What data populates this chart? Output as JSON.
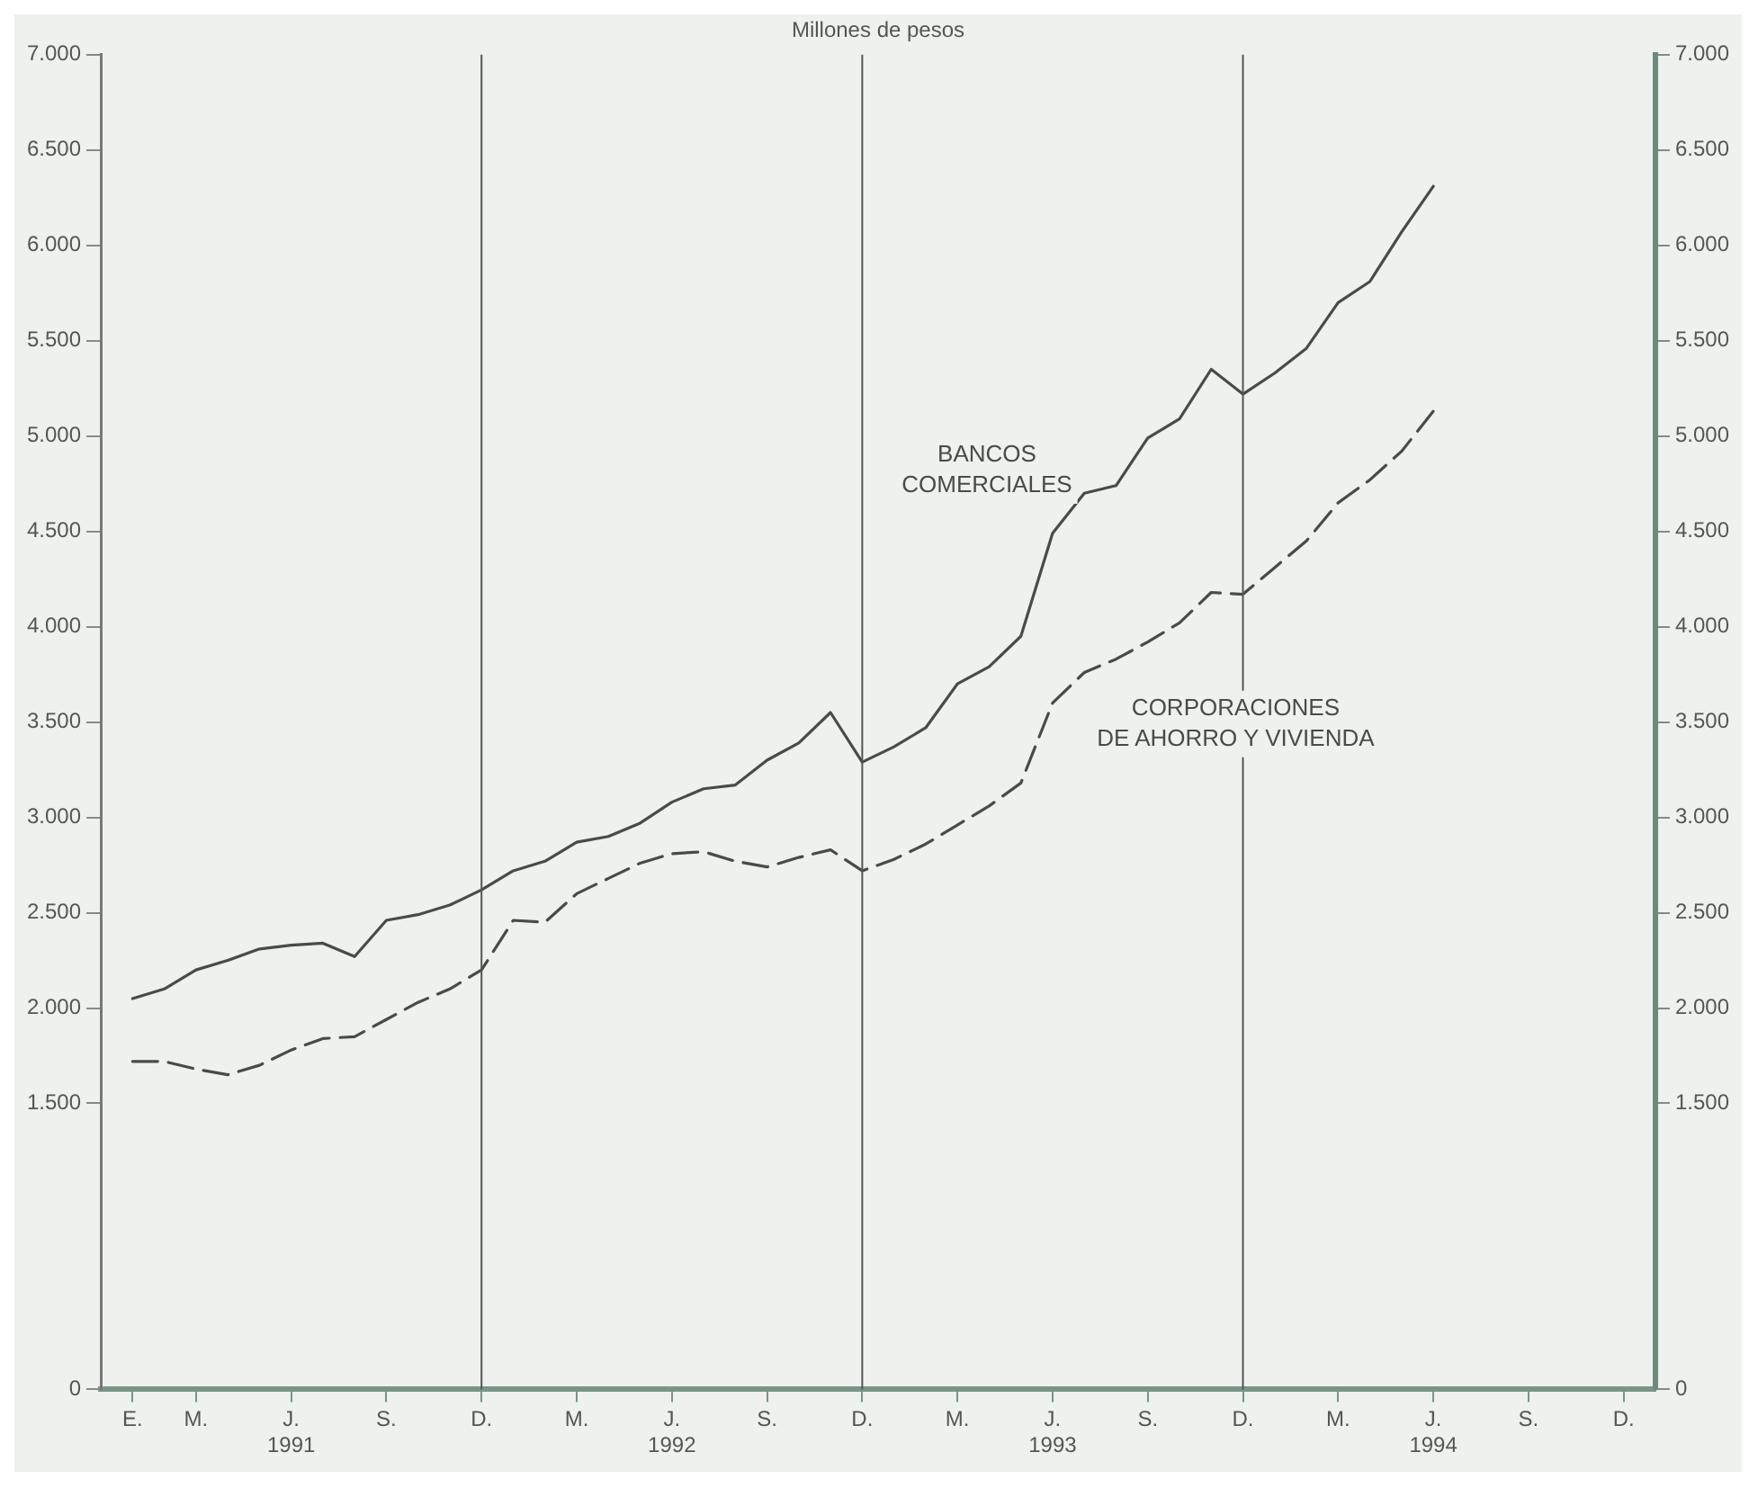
{
  "chart_data": {
    "type": "line",
    "title": "Millones de pesos",
    "x": [
      "1991-01",
      "1991-02",
      "1991-03",
      "1991-04",
      "1991-05",
      "1991-06",
      "1991-07",
      "1991-08",
      "1991-09",
      "1991-10",
      "1991-11",
      "1991-12",
      "1992-01",
      "1992-02",
      "1992-03",
      "1992-04",
      "1992-05",
      "1992-06",
      "1992-07",
      "1992-08",
      "1992-09",
      "1992-10",
      "1992-11",
      "1992-12",
      "1993-01",
      "1993-02",
      "1993-03",
      "1993-04",
      "1993-05",
      "1993-06",
      "1993-07",
      "1993-08",
      "1993-09",
      "1993-10",
      "1993-11",
      "1993-12",
      "1994-01",
      "1994-02",
      "1994-03",
      "1994-04",
      "1994-05",
      "1994-06"
    ],
    "series": [
      {
        "name": "BANCOS\nCOMERCIALES",
        "color": "#4a4a4a",
        "line_style": "solid",
        "values": [
          2050,
          2100,
          2200,
          2250,
          2310,
          2330,
          2340,
          2270,
          2460,
          2490,
          2540,
          2620,
          2720,
          2770,
          2870,
          2900,
          2970,
          3080,
          3150,
          3170,
          3300,
          3390,
          3550,
          3290,
          3370,
          3470,
          3700,
          3790,
          3950,
          4490,
          4700,
          4740,
          4990,
          5090,
          5350,
          5220,
          5330,
          5460,
          5700,
          5810,
          6070,
          6310
        ]
      },
      {
        "name": "CORPORACIONES\nDE AHORRO Y VIVIENDA",
        "color": "#4a4a4a",
        "line_style": "dashed",
        "values": [
          1720,
          1720,
          1680,
          1650,
          1700,
          1780,
          1840,
          1850,
          1940,
          2030,
          2100,
          2200,
          2460,
          2450,
          2600,
          2680,
          2760,
          2810,
          2820,
          2770,
          2740,
          2790,
          2830,
          2720,
          2780,
          2860,
          2960,
          3060,
          3180,
          3600,
          3760,
          3830,
          3920,
          4020,
          4180,
          4170,
          4310,
          4450,
          4650,
          4770,
          4920,
          5130
        ]
      }
    ],
    "marker": "none",
    "grid": false,
    "legend": false,
    "xlim": [
      "1990-12",
      "1995-01"
    ],
    "xticks": [
      {
        "value": "1991-01",
        "label": "E."
      },
      {
        "value": "1991-03",
        "label": "M."
      },
      {
        "value": "1991-06",
        "label": "J.\n1991"
      },
      {
        "value": "1991-09",
        "label": "S."
      },
      {
        "value": "1991-12",
        "label": "D."
      },
      {
        "value": "1992-03",
        "label": "M."
      },
      {
        "value": "1992-06",
        "label": "J.\n1992"
      },
      {
        "value": "1992-09",
        "label": "S."
      },
      {
        "value": "1992-12",
        "label": "D."
      },
      {
        "value": "1993-03",
        "label": "M."
      },
      {
        "value": "1993-06",
        "label": "J.\n1993"
      },
      {
        "value": "1993-09",
        "label": "S."
      },
      {
        "value": "1993-12",
        "label": "D."
      },
      {
        "value": "1994-03",
        "label": "M."
      },
      {
        "value": "1994-06",
        "label": "J.\n1994"
      },
      {
        "value": "1994-09",
        "label": "S."
      },
      {
        "value": "1994-12",
        "label": "D."
      }
    ],
    "ylim": [
      0,
      7000
    ],
    "yticks": [
      0,
      {
        "value": 1500,
        "label": "1.500"
      },
      {
        "value": 2000,
        "label": "2.000"
      },
      {
        "value": 2500,
        "label": "2.500"
      },
      {
        "value": 3000,
        "label": "3.000"
      },
      {
        "value": 3500,
        "label": "3.500"
      },
      {
        "value": 4000,
        "label": "4.000"
      },
      {
        "value": 4500,
        "label": "4.500"
      },
      {
        "value": 5000,
        "label": "5.000"
      },
      {
        "value": 5500,
        "label": "5.500"
      },
      {
        "value": 6000,
        "label": "6.000"
      },
      {
        "value": 6500,
        "label": "6.500"
      },
      {
        "value": 7000,
        "label": "7.000"
      }
    ],
    "y2lim": [
      0,
      7000
    ],
    "y2ticks": [
      0,
      {
        "value": 1500,
        "label": "1.500"
      },
      {
        "value": 2000,
        "label": "2.000"
      },
      {
        "value": 2500,
        "label": "2.500"
      },
      {
        "value": 3000,
        "label": "3.000"
      },
      {
        "value": 3500,
        "label": "3.500"
      },
      {
        "value": 4000,
        "label": "4.000"
      },
      {
        "value": 4500,
        "label": "4.500"
      },
      {
        "value": 5000,
        "label": "5.000"
      },
      {
        "value": 5500,
        "label": "5.500"
      },
      {
        "value": 6000,
        "label": "6.000"
      },
      {
        "value": 6500,
        "label": "6.500"
      },
      {
        "value": 7000,
        "label": "7.000"
      }
    ],
    "ref_lines": [
      {
        "axis": "x",
        "value": "1991-12",
        "color": "#555555"
      },
      {
        "axis": "x",
        "value": "1992-12",
        "color": "#555555"
      },
      {
        "axis": "x",
        "value": "1993-12",
        "color": "#555555"
      }
    ]
  }
}
